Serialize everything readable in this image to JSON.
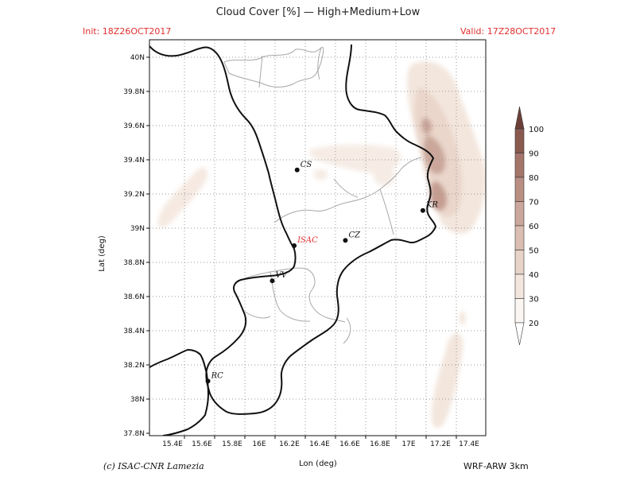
{
  "header": {
    "title": "Cloud Cover [%] — High+Medium+Low",
    "init": "Init: 18Z26OCT2017",
    "valid": "Valid: 17Z28OCT2017"
  },
  "footer": {
    "credit": "(c) ISAC-CNR Lamezia",
    "model": "WRF-ARW 3km"
  },
  "axes": {
    "xlabel": "Lon (deg)",
    "ylabel": "Lat (deg)",
    "x_ticks": [
      "15.4E",
      "15.6E",
      "15.8E",
      "16E",
      "16.2E",
      "16.4E",
      "16.6E",
      "16.8E",
      "17E",
      "17.2E",
      "17.4E"
    ],
    "y_ticks": [
      "40N",
      "39.8N",
      "39.6N",
      "39.4N",
      "39.2N",
      "39N",
      "38.8N",
      "38.6N",
      "38.4N",
      "38.2N",
      "38N",
      "37.8N"
    ],
    "lon_range": [
      15.25,
      17.55
    ],
    "lat_range": [
      37.8,
      40.05
    ]
  },
  "colorbar": {
    "labels": [
      "100",
      "90",
      "80",
      "70",
      "60",
      "50",
      "40",
      "30",
      "20"
    ],
    "colors": [
      "#6b4038",
      "#8a5a50",
      "#a4766b",
      "#b98f83",
      "#cba79b",
      "#dabeb2",
      "#e7d3c8",
      "#f2e6de",
      "#fbf6f2"
    ]
  },
  "cities": [
    {
      "name": "CS",
      "lon": 16.26,
      "lat": 39.31,
      "color": "#111111"
    },
    {
      "name": "KR",
      "lon": 17.12,
      "lat": 39.08,
      "color": "#111111"
    },
    {
      "name": "ISAC",
      "lon": 16.24,
      "lat": 38.88,
      "color": "#e03030"
    },
    {
      "name": "CZ",
      "lon": 16.59,
      "lat": 38.91,
      "color": "#111111"
    },
    {
      "name": "VV",
      "lon": 16.09,
      "lat": 38.68,
      "color": "#111111"
    },
    {
      "name": "RC",
      "lon": 15.65,
      "lat": 38.11,
      "color": "#111111"
    }
  ]
}
